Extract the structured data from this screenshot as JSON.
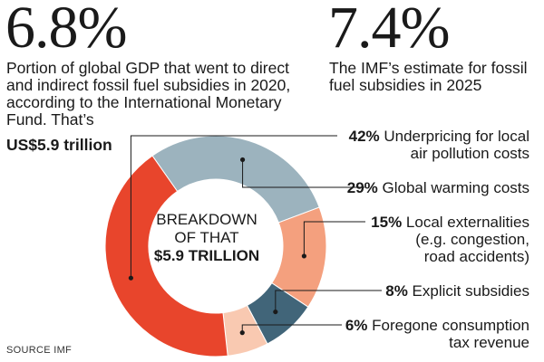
{
  "stat1": {
    "value": "6.8%",
    "description": "Portion of global GDP that went to direct and indirect fossil fuel subsidies in 2020, according  to the International Monetary Fund. That’s",
    "amount": "US$5.9 trillion"
  },
  "stat2": {
    "value": "7.4%",
    "description": "The IMF’s estimate for fossil fuel subsidies in 2025"
  },
  "center_label": {
    "line1": "BREAKDOWN",
    "line2": "OF THAT",
    "line3": "$5.9 TRILLION"
  },
  "source": "SOURCE IMF",
  "chart_data": {
    "type": "pie",
    "title": "BREAKDOWN OF THAT $5.9 TRILLION",
    "categories": [
      "Underpricing for local air pollution costs",
      "Global warming costs",
      "Local externalities (e.g. congestion, road accidents)",
      "Explicit subsidies",
      "Foregone consumption tax revenue"
    ],
    "values": [
      42,
      29,
      15,
      8,
      6
    ],
    "value_labels": [
      "42%",
      "29%",
      "15%",
      "8%",
      "6%"
    ],
    "label_lines": [
      [
        "Underpricing for local",
        "air pollution costs"
      ],
      [
        "Global warming costs"
      ],
      [
        "Local externalities",
        "(e.g. congestion,",
        "road accidents)"
      ],
      [
        "Explicit subsidies"
      ],
      [
        "Foregone consumption",
        "tax revenue"
      ]
    ],
    "colors": [
      "#e8452c",
      "#9cb3be",
      "#f4a07e",
      "#416579",
      "#f9c9b1"
    ]
  }
}
